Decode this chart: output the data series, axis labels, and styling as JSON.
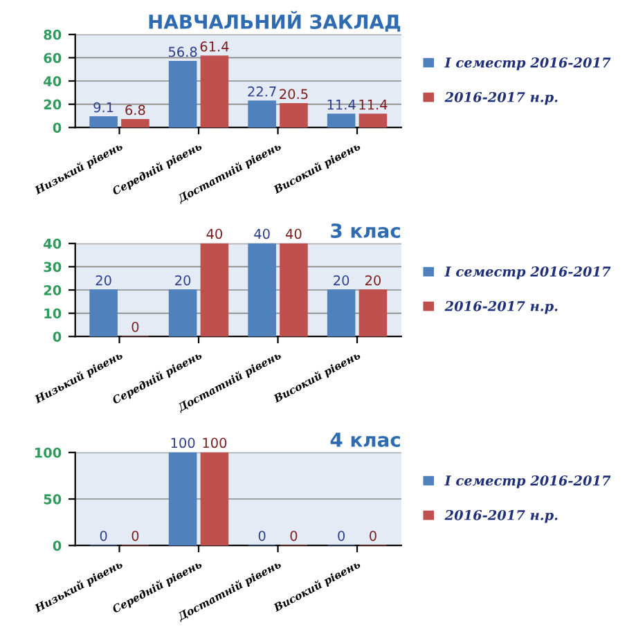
{
  "chart_data": [
    {
      "type": "bar",
      "title": "НАВЧАЛЬНИЙ ЗАКЛАД",
      "categories": [
        "Низький рівень",
        "Середній рівень",
        "Достатній рівень",
        "Високий рівень"
      ],
      "series": [
        {
          "name": "І семестр 2016-2017",
          "color": "#4f81bd",
          "values": [
            9.1,
            56.8,
            22.7,
            11.4
          ]
        },
        {
          "name": "2016-2017 н.р.",
          "color": "#c0504d",
          "values": [
            6.8,
            61.4,
            20.5,
            11.4
          ]
        }
      ],
      "ylim": [
        0,
        80
      ],
      "yticks": [
        0,
        20,
        40,
        60,
        80
      ],
      "grid": "y",
      "legend": "right",
      "data_labels": true
    },
    {
      "type": "bar",
      "title": "3 клас",
      "categories": [
        "Низький рівень",
        "Середній рівень",
        "Достатній рівень",
        "Високий рівень"
      ],
      "series": [
        {
          "name": "І семестр 2016-2017",
          "color": "#4f81bd",
          "values": [
            20,
            20,
            40,
            20
          ]
        },
        {
          "name": "2016-2017 н.р.",
          "color": "#c0504d",
          "values": [
            0,
            40,
            40,
            20
          ]
        }
      ],
      "ylim": [
        0,
        40
      ],
      "yticks": [
        0,
        10,
        20,
        30,
        40
      ],
      "grid": "y",
      "legend": "right",
      "data_labels": true
    },
    {
      "type": "bar",
      "title": "4 клас",
      "categories": [
        "Низький рівень",
        "Середній рівень",
        "Достатній рівень",
        "Високий рівень"
      ],
      "series": [
        {
          "name": "І семестр 2016-2017",
          "color": "#4f81bd",
          "values": [
            0,
            100,
            0,
            0
          ]
        },
        {
          "name": "2016-2017 н.р.",
          "color": "#c0504d",
          "values": [
            0,
            100,
            0,
            0
          ]
        }
      ],
      "ylim": [
        0,
        100
      ],
      "yticks": [
        0,
        50,
        100
      ],
      "grid": "y",
      "legend": "right",
      "data_labels": true
    }
  ]
}
